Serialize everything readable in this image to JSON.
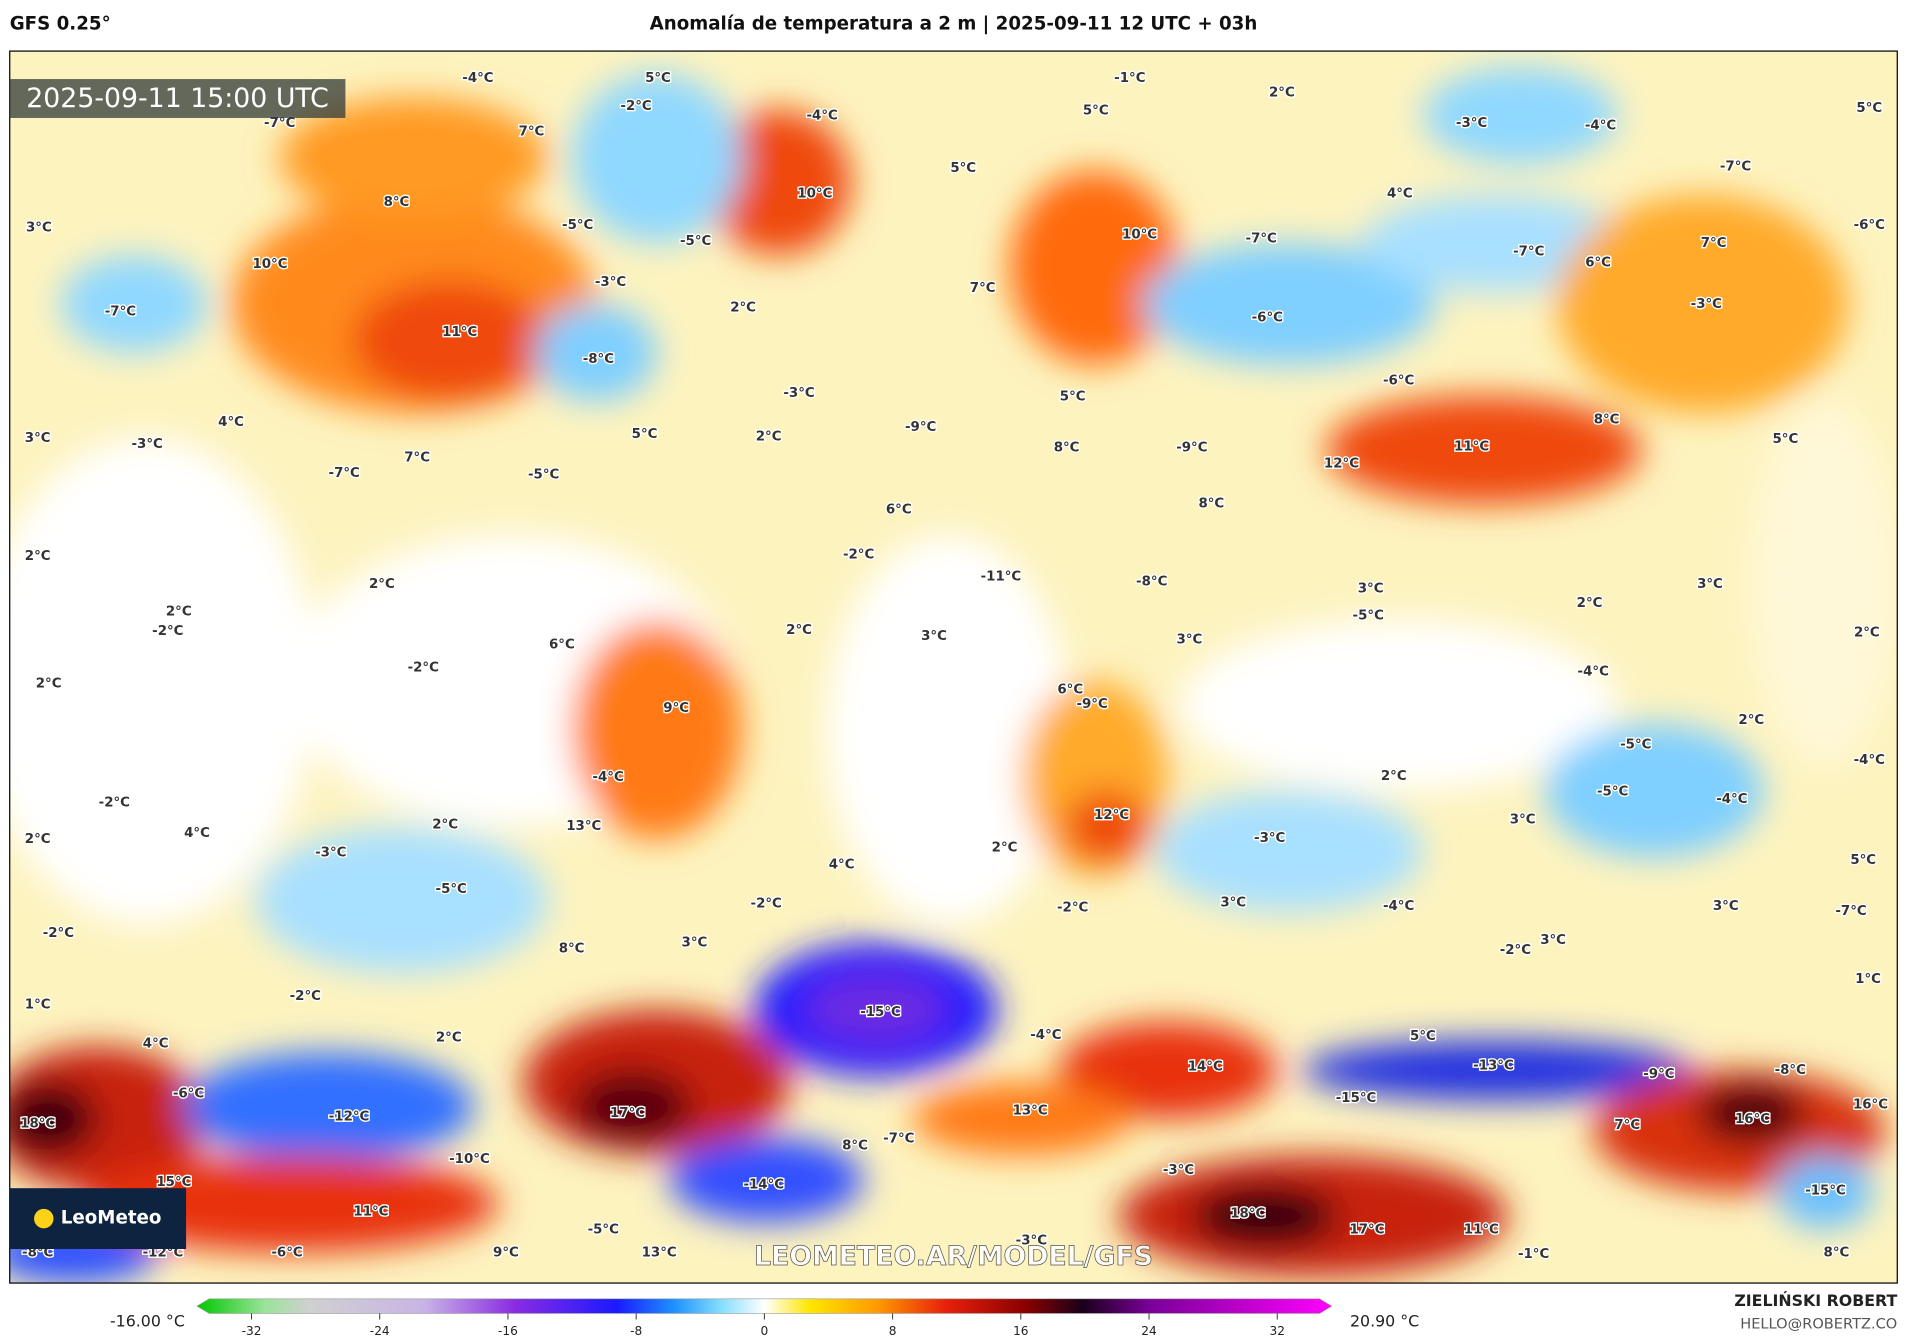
{
  "header": {
    "model": "GFS 0.25°",
    "title": "Anomalía de temperatura a 2 m | 2025-09-11 12 UTC + 03h"
  },
  "timestamp": "2025-09-11 15:00 UTC",
  "logo": "LeoMeteo",
  "watermark": "LEOMETEO.AR/MODEL/GFS",
  "credit": {
    "name": "ZIELIŃSKI ROBERT",
    "email": "HELLO@ROBERTZ.CO"
  },
  "colorbar": {
    "min_label": "-16.00 °C",
    "max_label": "20.90 °C",
    "clim": [
      -35.4,
      35.4
    ],
    "ticks": [
      -32,
      -24,
      -16,
      -8,
      0,
      8,
      16,
      24,
      32
    ]
  },
  "map_labels": [
    "-4°C",
    "5°C",
    "-2°C",
    "-7°C",
    "7°C",
    "-4°C",
    "-1°C",
    "2°C",
    "5°C",
    "-3°C",
    "-4°C",
    "5°C",
    "-7°C",
    "5°C",
    "10°C",
    "4°C",
    "8°C",
    "-5°C",
    "3°C",
    "-5°C",
    "10°C",
    "-7°C",
    "-6°C",
    "7°C",
    "10°C",
    "-7°C",
    "6°C",
    "-3°C",
    "7°C",
    "2°C",
    "-7°C",
    "-3°C",
    "-6°C",
    "11°C",
    "-8°C",
    "-6°C",
    "-3°C",
    "5°C",
    "4°C",
    "5°C",
    "2°C",
    "3°C",
    "-3°C",
    "-9°C",
    "8°C",
    "5°C",
    "11°C",
    "7°C",
    "8°C",
    "-9°C",
    "12°C",
    "-7°C",
    "-5°C",
    "6°C",
    "8°C",
    "2°C",
    "-2°C",
    "-11°C",
    "-8°C",
    "3°C",
    "3°C",
    "2°C",
    "2°C",
    "-2°C",
    "-5°C",
    "2°C",
    "2°C",
    "3°C",
    "3°C",
    "6°C",
    "2°C",
    "-2°C",
    "2°C",
    "-4°C",
    "6°C",
    "-9°C",
    "9°C",
    "2°C",
    "-5°C",
    "-4°C",
    "-4°C",
    "2°C",
    "-5°C",
    "-4°C",
    "-2°C",
    "13°C",
    "12°C",
    "3°C",
    "2°C",
    "4°C",
    "2°C",
    "-3°C",
    "2°C",
    "-3°C",
    "4°C",
    "5°C",
    "-5°C",
    "-2°C",
    "-2°C",
    "3°C",
    "-4°C",
    "3°C",
    "-7°C",
    "-2°C",
    "3°C",
    "8°C",
    "-2°C",
    "3°C",
    "1°C",
    "1°C",
    "-2°C",
    "-15°C",
    "-4°C",
    "2°C",
    "4°C",
    "5°C",
    "14°C",
    "-13°C",
    "-9°C",
    "-8°C",
    "-6°C",
    "-15°C",
    "16°C",
    "18°C",
    "-12°C",
    "17°C",
    "13°C",
    "16°C",
    "7°C",
    "-7°C",
    "8°C",
    "-10°C",
    "-3°C",
    "15°C",
    "-14°C",
    "-15°C",
    "11°C",
    "18°C",
    "17°C",
    "11°C",
    "-5°C",
    "-3°C",
    "-8°C",
    "-12°C",
    "-6°C",
    "9°C",
    "13°C",
    "-1°C",
    "8°C"
  ]
}
